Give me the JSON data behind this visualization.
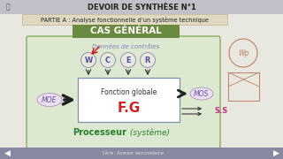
{
  "title": "DEVOIR DE SYNTHÈSE N°1",
  "subtitle": "PARTIE A : Analyse fonctionnelle d’un système technique",
  "cas_general": "CAS GÉNÉRAL",
  "donnees_controles": "Données de contrôles",
  "fg_label1": "Fonction globale",
  "fg_label2": "F.G",
  "moe_label": "MOE",
  "mos_label": "MOS",
  "ss_label": "S.S",
  "processeur_bold": "Processeur",
  "processeur_italic": " (système)",
  "footer": "1ère  Année secondaire",
  "controls": [
    "W",
    "C",
    "E",
    "R"
  ],
  "bg_color": "#e8e8e0",
  "header_bg": "#c0c0c8",
  "subtitle_bg": "#e0d8c0",
  "cas_bg": "#6a8a40",
  "cas_text_color": "#ffffff",
  "box_bg": "#dde8d0",
  "box_border": "#8aaa60",
  "fg_box_bg": "#ffffff",
  "fg_box_border": "#8090b0",
  "title_color": "#222222",
  "subtitle_color": "#222222",
  "donnees_color": "#8080c0",
  "control_fill": "#e8e8dc",
  "control_border": "#9090b0",
  "control_color": "#5050a0",
  "moe_fill": "#e8e0f0",
  "moe_border": "#b090c0",
  "moe_color": "#7050a0",
  "mos_fill": "#e8e0f0",
  "mos_border": "#b090c0",
  "mos_color": "#7050a0",
  "ss_color": "#c03080",
  "fg1_color": "#303030",
  "fg2_color": "#d82020",
  "processeur_color": "#2a8030",
  "arrow_color": "#222222",
  "red_arrow_color": "#cc1010",
  "footer_bar_color": "#8888a0",
  "footer_text_color": "#e0e0e8",
  "right_sketch_color": "#c08060"
}
